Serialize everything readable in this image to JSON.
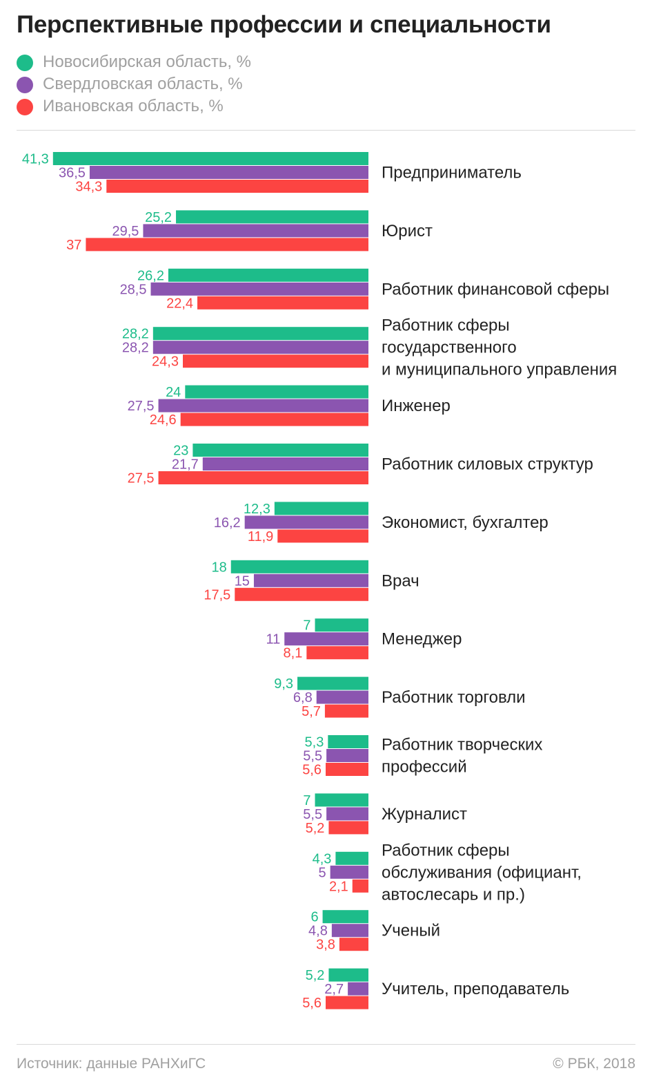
{
  "title": "Перспективные профессии и специальности",
  "footer": {
    "source": "Источник: данные РАНХиГС",
    "copyright": "© РБК, 2018"
  },
  "chart_data": {
    "type": "bar",
    "orientation": "horizontal",
    "grid": false,
    "legend_placement": "top-left",
    "series": [
      {
        "name": "Новосибирская область, %",
        "color": "#1dbc8a",
        "values": [
          41.3,
          25.2,
          26.2,
          28.2,
          24,
          23,
          12.3,
          18,
          7,
          9.3,
          5.3,
          7,
          4.3,
          6,
          5.2
        ],
        "labels": [
          "41,3",
          "25,2",
          "26,2",
          "28,2",
          "24",
          "23",
          "12,3",
          "18",
          "7",
          "9,3",
          "5,3",
          "7",
          "4,3",
          "6",
          "5,2"
        ]
      },
      {
        "name": "Свердловская область, %",
        "color": "#8b55b0",
        "values": [
          36.5,
          29.5,
          28.5,
          28.2,
          27.5,
          21.7,
          16.2,
          15,
          11,
          6.8,
          5.5,
          5.5,
          5,
          4.8,
          2.7
        ],
        "labels": [
          "36,5",
          "29,5",
          "28,5",
          "28,2",
          "27,5",
          "21,7",
          "16,2",
          "15",
          "11",
          "6,8",
          "5,5",
          "5,5",
          "5",
          "4,8",
          "2,7"
        ]
      },
      {
        "name": "Ивановская область, %",
        "color": "#fc4442",
        "values": [
          34.3,
          37,
          22.4,
          24.3,
          24.6,
          27.5,
          11.9,
          17.5,
          8.1,
          5.7,
          5.6,
          5.2,
          2.1,
          3.8,
          5.6
        ],
        "labels": [
          "34,3",
          "37",
          "22,4",
          "24,3",
          "24,6",
          "27,5",
          "11,9",
          "17,5",
          "8,1",
          "5,7",
          "5,6",
          "5,2",
          "2,1",
          "3,8",
          "5,6"
        ]
      }
    ],
    "categories": [
      [
        "Предприниматель"
      ],
      [
        "Юрист"
      ],
      [
        "Работник финансовой сферы"
      ],
      [
        "Работник сферы",
        "государственного",
        "и муниципального управления"
      ],
      [
        "Инженер"
      ],
      [
        "Работник силовых структур"
      ],
      [
        "Экономист, бухгалтер"
      ],
      [
        "Врач"
      ],
      [
        "Менеджер"
      ],
      [
        "Работник торговли"
      ],
      [
        "Работник творческих",
        "профессий"
      ],
      [
        "Журналист"
      ],
      [
        "Работник сферы",
        "обслуживания (официант,",
        "автослесарь и пр.)"
      ],
      [
        "Ученый"
      ],
      [
        "Учитель, преподаватель"
      ]
    ]
  }
}
